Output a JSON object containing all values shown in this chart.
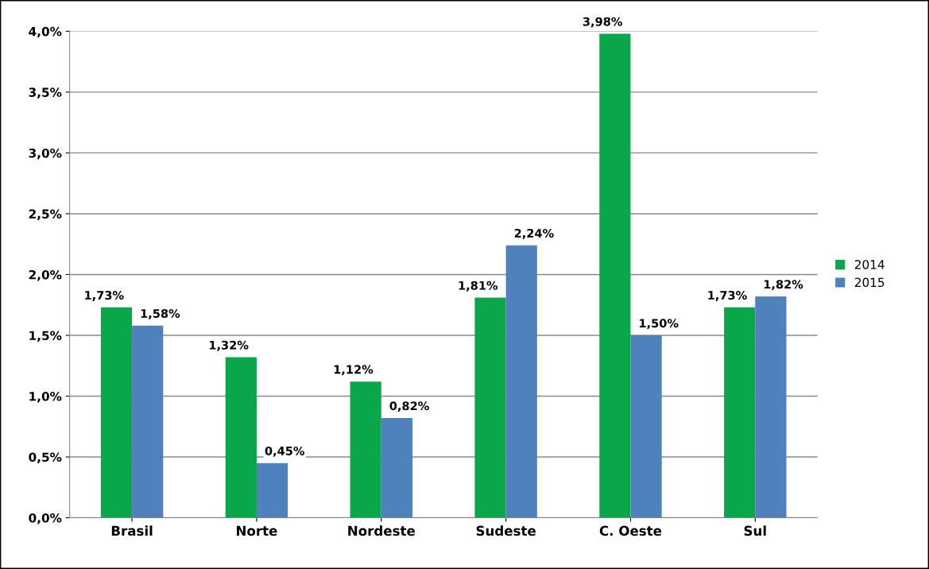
{
  "chart_data": {
    "type": "bar",
    "categories": [
      "Brasil",
      "Norte",
      "Nordeste",
      "Sudeste",
      "C. Oeste",
      "Sul"
    ],
    "series": [
      {
        "name": "2014",
        "color": "#0aa64a",
        "values": [
          1.73,
          1.32,
          1.12,
          1.81,
          3.98,
          1.73
        ],
        "value_labels": [
          "1,73%",
          "1,32%",
          "1,12%",
          "1,81%",
          "3,98%",
          "1,73%"
        ]
      },
      {
        "name": "2015",
        "color": "#4f81bd",
        "values": [
          1.58,
          0.45,
          0.82,
          2.24,
          1.5,
          1.82
        ],
        "value_labels": [
          "1,58%",
          "0,45%",
          "0,82%",
          "2,24%",
          "1,50%",
          "1,82%"
        ]
      }
    ],
    "ylim": [
      0,
      4
    ],
    "yticks": [
      {
        "value": 0,
        "label": "0,0%"
      },
      {
        "value": 0.5,
        "label": "0,5%"
      },
      {
        "value": 1,
        "label": "1,0%"
      },
      {
        "value": 1.5,
        "label": "1,5%"
      },
      {
        "value": 2,
        "label": "2,0%"
      },
      {
        "value": 2.5,
        "label": "2,5%"
      },
      {
        "value": 3,
        "label": "3,0%"
      },
      {
        "value": 3.5,
        "label": "3,5%"
      },
      {
        "value": 4,
        "label": "4,0%"
      }
    ],
    "grid": "y",
    "legend": "right"
  }
}
